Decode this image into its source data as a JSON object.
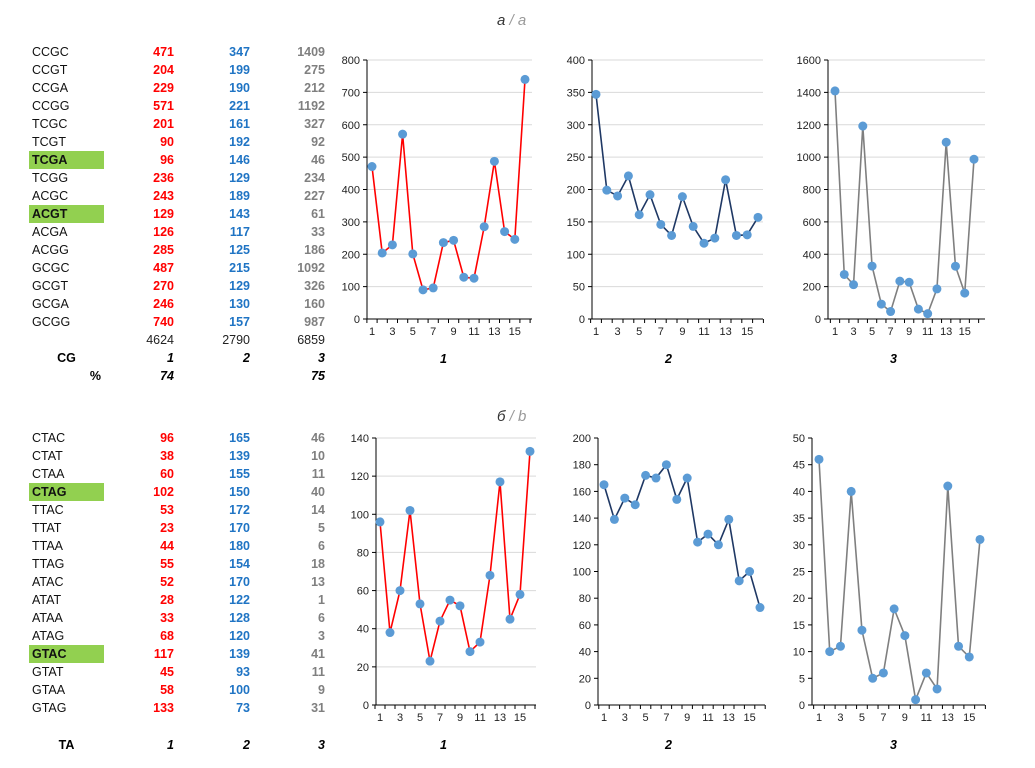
{
  "panels": [
    {
      "title": "а",
      "title_alt": "a",
      "group_label": "CG",
      "percent_label": "%",
      "rows": [
        [
          "CCGC",
          471,
          347,
          1409
        ],
        [
          "CCGT",
          204,
          199,
          275
        ],
        [
          "CCGA",
          229,
          190,
          212
        ],
        [
          "CCGG",
          571,
          221,
          1192
        ],
        [
          "TCGC",
          201,
          161,
          327
        ],
        [
          "TCGT",
          90,
          192,
          92
        ],
        [
          "TCGA",
          96,
          146,
          46
        ],
        [
          "TCGG",
          236,
          129,
          234
        ],
        [
          "ACGC",
          243,
          189,
          227
        ],
        [
          "ACGT",
          129,
          143,
          61
        ],
        [
          "ACGA",
          126,
          117,
          33
        ],
        [
          "ACGG",
          285,
          125,
          186
        ],
        [
          "GCGC",
          487,
          215,
          1092
        ],
        [
          "GCGT",
          270,
          129,
          326
        ],
        [
          "GCGA",
          246,
          130,
          160
        ],
        [
          "GCGG",
          740,
          157,
          987
        ]
      ],
      "highlighted": [
        "TCGA",
        "ACGT"
      ],
      "totals": [
        "4624",
        "2790",
        "6859"
      ],
      "column_labels": [
        "1",
        "2",
        "3"
      ],
      "percent": [
        "74",
        "",
        "75"
      ]
    },
    {
      "title": "б",
      "title_alt": "b",
      "group_label": "TA",
      "rows": [
        [
          "CTAC",
          96,
          165,
          46
        ],
        [
          "CTAT",
          38,
          139,
          10
        ],
        [
          "CTAA",
          60,
          155,
          11
        ],
        [
          "CTAG",
          102,
          150,
          40
        ],
        [
          "TTAC",
          53,
          172,
          14
        ],
        [
          "TTAT",
          23,
          170,
          5
        ],
        [
          "TTAA",
          44,
          180,
          6
        ],
        [
          "TTAG",
          55,
          154,
          18
        ],
        [
          "ATAC",
          52,
          170,
          13
        ],
        [
          "ATAT",
          28,
          122,
          1
        ],
        [
          "ATAA",
          33,
          128,
          6
        ],
        [
          "ATAG",
          68,
          120,
          3
        ],
        [
          "GTAC",
          117,
          139,
          41
        ],
        [
          "GTAT",
          45,
          93,
          11
        ],
        [
          "GTAA",
          58,
          100,
          9
        ],
        [
          "GTAG",
          133,
          73,
          31
        ]
      ],
      "highlighted": [
        "CTAG",
        "GTAC"
      ],
      "column_labels": [
        "1",
        "2",
        "3"
      ]
    }
  ],
  "colors": {
    "col1": "#ff0000",
    "col2": "#1f74c4",
    "col3": "#7f7f7f",
    "highlight": "#92d050",
    "marker": "#5b9bd5",
    "line1": "#ff0000",
    "line2": "#1f3864",
    "line3": "#7f7f7f"
  },
  "chart_data": [
    {
      "type": "line",
      "panel": "а",
      "xlabel": "1",
      "categories": [
        1,
        2,
        3,
        4,
        5,
        6,
        7,
        8,
        9,
        10,
        11,
        12,
        13,
        14,
        15,
        16
      ],
      "x_tick_labels": [
        "1",
        "3",
        "5",
        "7",
        "9",
        "11",
        "13",
        "15"
      ],
      "ylim": [
        0,
        800
      ],
      "yticks": [
        0,
        100,
        200,
        300,
        400,
        500,
        600,
        700,
        800
      ],
      "grid": true,
      "values": [
        471,
        204,
        229,
        571,
        201,
        90,
        96,
        236,
        243,
        129,
        126,
        285,
        487,
        270,
        246,
        740
      ]
    },
    {
      "type": "line",
      "panel": "а",
      "xlabel": "2",
      "categories": [
        1,
        2,
        3,
        4,
        5,
        6,
        7,
        8,
        9,
        10,
        11,
        12,
        13,
        14,
        15,
        16
      ],
      "x_tick_labels": [
        "1",
        "3",
        "5",
        "7",
        "9",
        "11",
        "13",
        "15"
      ],
      "ylim": [
        0,
        400
      ],
      "yticks": [
        0,
        50,
        100,
        150,
        200,
        250,
        300,
        350,
        400
      ],
      "grid": true,
      "values": [
        347,
        199,
        190,
        221,
        161,
        192,
        146,
        129,
        189,
        143,
        117,
        125,
        215,
        129,
        130,
        157
      ]
    },
    {
      "type": "line",
      "panel": "а",
      "xlabel": "3",
      "categories": [
        1,
        2,
        3,
        4,
        5,
        6,
        7,
        8,
        9,
        10,
        11,
        12,
        13,
        14,
        15,
        16
      ],
      "x_tick_labels": [
        "1",
        "3",
        "5",
        "7",
        "9",
        "11",
        "13",
        "15"
      ],
      "ylim": [
        0,
        1600
      ],
      "yticks": [
        0,
        200,
        400,
        600,
        800,
        1000,
        1200,
        1400,
        1600
      ],
      "grid": true,
      "values": [
        1409,
        275,
        212,
        1192,
        327,
        92,
        46,
        234,
        227,
        61,
        33,
        186,
        1092,
        326,
        160,
        987
      ]
    },
    {
      "type": "line",
      "panel": "б",
      "xlabel": "1",
      "categories": [
        1,
        2,
        3,
        4,
        5,
        6,
        7,
        8,
        9,
        10,
        11,
        12,
        13,
        14,
        15,
        16
      ],
      "x_tick_labels": [
        "1",
        "3",
        "5",
        "7",
        "9",
        "11",
        "13",
        "15"
      ],
      "ylim": [
        0,
        140
      ],
      "yticks": [
        0,
        20,
        40,
        60,
        80,
        100,
        120,
        140
      ],
      "grid": true,
      "values": [
        96,
        38,
        60,
        102,
        53,
        23,
        44,
        55,
        52,
        28,
        33,
        68,
        117,
        45,
        58,
        133
      ]
    },
    {
      "type": "line",
      "panel": "б",
      "xlabel": "2",
      "categories": [
        1,
        2,
        3,
        4,
        5,
        6,
        7,
        8,
        9,
        10,
        11,
        12,
        13,
        14,
        15,
        16
      ],
      "x_tick_labels": [
        "1",
        "3",
        "5",
        "7",
        "9",
        "11",
        "13",
        "15"
      ],
      "ylim": [
        0,
        200
      ],
      "yticks": [
        0,
        20,
        40,
        60,
        80,
        100,
        120,
        140,
        160,
        180,
        200
      ],
      "grid": false,
      "values": [
        165,
        139,
        155,
        150,
        172,
        170,
        180,
        154,
        170,
        122,
        128,
        120,
        139,
        93,
        100,
        73
      ]
    },
    {
      "type": "line",
      "panel": "б",
      "xlabel": "3",
      "categories": [
        1,
        2,
        3,
        4,
        5,
        6,
        7,
        8,
        9,
        10,
        11,
        12,
        13,
        14,
        15,
        16
      ],
      "x_tick_labels": [
        "1",
        "3",
        "5",
        "7",
        "9",
        "11",
        "13",
        "15"
      ],
      "ylim": [
        0,
        50
      ],
      "yticks": [
        0,
        5,
        10,
        15,
        20,
        25,
        30,
        35,
        40,
        45,
        50
      ],
      "grid": false,
      "values": [
        46,
        10,
        11,
        40,
        14,
        5,
        6,
        18,
        13,
        1,
        6,
        3,
        41,
        11,
        9,
        31
      ]
    }
  ]
}
